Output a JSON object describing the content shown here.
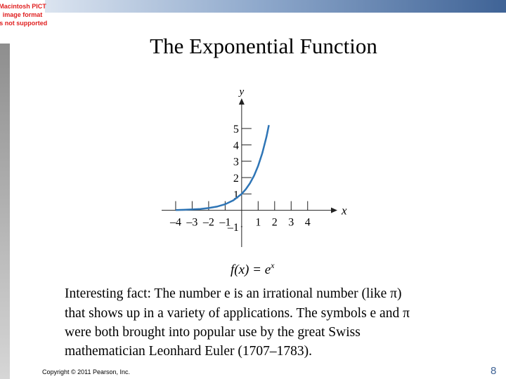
{
  "slide": {
    "placeholder": [
      "Macintosh PICT",
      "image format",
      "is not supported"
    ],
    "title": "The Exponential Function",
    "caption": {
      "function": "f(x) = e",
      "exponent": "x"
    },
    "paragraph": [
      "Interesting fact: The number e is an irrational number (like π)",
      "that shows up in a variety of applications. The symbols e and π",
      "were both brought into popular use by the great Swiss",
      "mathematician Leonhard Euler (1707–1783)."
    ],
    "footer": "Copyright © 2011 Pearson, Inc.",
    "page_number": "8"
  },
  "chart_data": {
    "type": "line",
    "x_label": "x",
    "y_label": "y",
    "color": "#2e75b6",
    "x": [
      -4,
      -3.5,
      -3,
      -2.5,
      -2,
      -1.5,
      -1,
      -0.5,
      0,
      0.25,
      0.5,
      0.75,
      1,
      1.25,
      1.5,
      1.65
    ],
    "values": [
      0.018,
      0.03,
      0.05,
      0.082,
      0.135,
      0.223,
      0.368,
      0.607,
      1,
      1.284,
      1.649,
      2.117,
      2.718,
      3.49,
      4.482,
      5.207
    ],
    "xlim": [
      -4.85,
      5.8
    ],
    "ylim": [
      -2.25,
      6.85
    ],
    "xticks": [
      {
        "value": -4,
        "label": "–4"
      },
      {
        "value": -3,
        "label": "–3"
      },
      {
        "value": -2,
        "label": "–2"
      },
      {
        "value": -1,
        "label": "–1"
      },
      1,
      2,
      3,
      4
    ],
    "yticks": [
      {
        "value": -1,
        "label": "–1"
      },
      1,
      2,
      3,
      4,
      5
    ]
  }
}
